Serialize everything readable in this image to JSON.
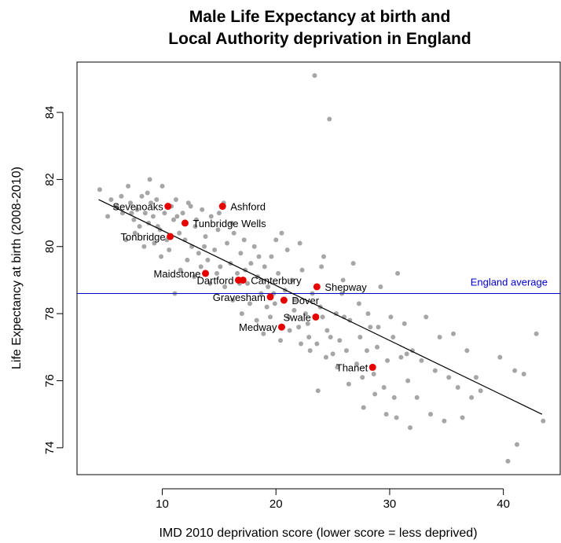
{
  "chart_data": {
    "type": "scatter",
    "title_line1": "Male Life Expectancy at birth and",
    "title_line2": "Local Authority deprivation in England",
    "xlabel": "IMD 2010 deprivation score (lower score = less deprived)",
    "ylabel": "Life Expectancy at birth (2008-2010)",
    "xlim": [
      2.5,
      45
    ],
    "ylim": [
      73.2,
      85.5
    ],
    "xticks": [
      10,
      20,
      30,
      40
    ],
    "yticks": [
      74,
      76,
      78,
      80,
      82,
      84
    ],
    "grid": false,
    "colors": {
      "background_points": "#a6a6a6",
      "highlight_points": "#e60000",
      "reference_line": "#0000cc",
      "trend_line": "#000000"
    },
    "reference_line": {
      "y": 78.6,
      "label": "England average"
    },
    "trend_line": {
      "x": [
        4.4,
        43.4
      ],
      "y": [
        81.4,
        75.0
      ]
    },
    "highlighted": [
      {
        "name": "Sevenoaks",
        "x": 10.5,
        "y": 81.2,
        "label_side": "left"
      },
      {
        "name": "Ashford",
        "x": 15.3,
        "y": 81.2,
        "label_side": "right"
      },
      {
        "name": "Tunbridge Wells",
        "x": 12.0,
        "y": 80.7,
        "label_side": "right"
      },
      {
        "name": "Tonbridge",
        "x": 10.7,
        "y": 80.3,
        "label_side": "left"
      },
      {
        "name": "Maidstone",
        "x": 13.8,
        "y": 79.2,
        "label_side": "left"
      },
      {
        "name": "Dartford",
        "x": 16.7,
        "y": 79.0,
        "label_side": "left"
      },
      {
        "name": "Canterbury",
        "x": 17.1,
        "y": 79.0,
        "label_side": "right"
      },
      {
        "name": "Shepway",
        "x": 23.6,
        "y": 78.8,
        "label_side": "right"
      },
      {
        "name": "Gravesham",
        "x": 19.5,
        "y": 78.5,
        "label_side": "left"
      },
      {
        "name": "Dover",
        "x": 20.7,
        "y": 78.4,
        "label_side": "right"
      },
      {
        "name": "Swale",
        "x": 23.5,
        "y": 77.9,
        "label_side": "left"
      },
      {
        "name": "Medway",
        "x": 20.5,
        "y": 77.6,
        "label_side": "left"
      },
      {
        "name": "Thanet",
        "x": 28.5,
        "y": 76.4,
        "label_side": "left"
      }
    ],
    "points": [
      [
        4.5,
        81.7
      ],
      [
        5.5,
        81.4
      ],
      [
        6.0,
        81.2
      ],
      [
        6.5,
        81.0
      ],
      [
        7.0,
        81.8
      ],
      [
        7.2,
        81.3
      ],
      [
        7.5,
        80.8
      ],
      [
        7.8,
        81.1
      ],
      [
        8.0,
        80.6
      ],
      [
        8.2,
        81.5
      ],
      [
        8.5,
        81.0
      ],
      [
        8.7,
        81.6
      ],
      [
        8.9,
        82.0
      ],
      [
        9.0,
        81.3
      ],
      [
        9.2,
        80.9
      ],
      [
        9.5,
        81.4
      ],
      [
        9.8,
        80.5
      ],
      [
        10.0,
        81.8
      ],
      [
        10.2,
        81.0
      ],
      [
        10.4,
        80.2
      ],
      [
        10.8,
        81.2
      ],
      [
        11.0,
        80.8
      ],
      [
        11.2,
        81.4
      ],
      [
        11.5,
        80.4
      ],
      [
        11.8,
        81.0
      ],
      [
        12.0,
        80.2
      ],
      [
        12.3,
        81.3
      ],
      [
        12.6,
        80.0
      ],
      [
        12.9,
        80.6
      ],
      [
        13.2,
        79.8
      ],
      [
        13.5,
        81.1
      ],
      [
        13.8,
        80.3
      ],
      [
        14.0,
        79.6
      ],
      [
        14.3,
        80.9
      ],
      [
        14.6,
        79.9
      ],
      [
        14.9,
        80.5
      ],
      [
        15.1,
        79.4
      ],
      [
        15.4,
        81.3
      ],
      [
        15.7,
        80.1
      ],
      [
        16.0,
        79.5
      ],
      [
        16.3,
        80.4
      ],
      [
        16.6,
        79.2
      ],
      [
        16.9,
        79.8
      ],
      [
        17.2,
        80.2
      ],
      [
        17.5,
        78.9
      ],
      [
        17.8,
        79.5
      ],
      [
        18.1,
        80.0
      ],
      [
        18.4,
        79.1
      ],
      [
        18.7,
        78.6
      ],
      [
        19.0,
        79.4
      ],
      [
        19.3,
        78.8
      ],
      [
        19.6,
        79.7
      ],
      [
        19.9,
        78.3
      ],
      [
        20.2,
        79.2
      ],
      [
        20.5,
        80.4
      ],
      [
        20.8,
        78.7
      ],
      [
        21.1,
        77.9
      ],
      [
        21.4,
        79.0
      ],
      [
        21.7,
        78.4
      ],
      [
        22.0,
        77.6
      ],
      [
        22.3,
        79.3
      ],
      [
        22.6,
        78.0
      ],
      [
        22.9,
        77.3
      ],
      [
        23.2,
        78.6
      ],
      [
        23.4,
        85.1
      ],
      [
        23.6,
        77.1
      ],
      [
        23.9,
        78.2
      ],
      [
        24.2,
        79.7
      ],
      [
        24.5,
        77.5
      ],
      [
        24.7,
        83.8
      ],
      [
        25.0,
        76.8
      ],
      [
        25.3,
        78.0
      ],
      [
        25.6,
        77.2
      ],
      [
        25.9,
        79.0
      ],
      [
        26.2,
        76.9
      ],
      [
        26.5,
        77.8
      ],
      [
        26.8,
        79.5
      ],
      [
        27.1,
        76.5
      ],
      [
        27.4,
        77.3
      ],
      [
        27.7,
        75.2
      ],
      [
        28.0,
        76.9
      ],
      [
        28.3,
        77.6
      ],
      [
        28.6,
        76.2
      ],
      [
        28.9,
        77.0
      ],
      [
        29.2,
        78.8
      ],
      [
        29.5,
        75.8
      ],
      [
        29.8,
        76.6
      ],
      [
        30.1,
        77.9
      ],
      [
        30.4,
        75.5
      ],
      [
        30.7,
        79.2
      ],
      [
        31.0,
        76.7
      ],
      [
        31.3,
        77.7
      ],
      [
        31.6,
        76.0
      ],
      [
        32.0,
        76.9
      ],
      [
        32.4,
        75.5
      ],
      [
        32.8,
        76.6
      ],
      [
        33.2,
        77.9
      ],
      [
        33.6,
        75.0
      ],
      [
        34.0,
        76.3
      ],
      [
        34.4,
        77.3
      ],
      [
        34.8,
        74.8
      ],
      [
        35.2,
        76.1
      ],
      [
        35.6,
        77.4
      ],
      [
        36.0,
        75.8
      ],
      [
        36.4,
        74.9
      ],
      [
        36.8,
        76.9
      ],
      [
        37.2,
        75.5
      ],
      [
        37.6,
        76.1
      ],
      [
        38.0,
        75.7
      ],
      [
        39.7,
        76.7
      ],
      [
        40.4,
        73.6
      ],
      [
        41.0,
        76.3
      ],
      [
        41.2,
        74.1
      ],
      [
        41.8,
        76.2
      ],
      [
        42.9,
        77.4
      ],
      [
        43.5,
        74.8
      ],
      [
        5.2,
        80.9
      ],
      [
        6.8,
        80.2
      ],
      [
        7.6,
        80.4
      ],
      [
        8.4,
        80.0
      ],
      [
        9.3,
        80.1
      ],
      [
        9.9,
        79.7
      ],
      [
        10.6,
        79.9
      ],
      [
        11.1,
        78.6
      ],
      [
        11.6,
        79.3
      ],
      [
        12.2,
        79.6
      ],
      [
        12.8,
        79.1
      ],
      [
        13.4,
        79.4
      ],
      [
        14.2,
        78.9
      ],
      [
        14.8,
        79.2
      ],
      [
        15.5,
        78.8
      ],
      [
        16.2,
        78.4
      ],
      [
        17.0,
        78.0
      ],
      [
        17.7,
        78.3
      ],
      [
        18.3,
        77.8
      ],
      [
        18.9,
        77.4
      ],
      [
        19.5,
        77.9
      ],
      [
        20.4,
        77.2
      ],
      [
        21.2,
        77.5
      ],
      [
        22.2,
        77.1
      ],
      [
        23.0,
        76.9
      ],
      [
        23.7,
        75.7
      ],
      [
        24.4,
        76.7
      ],
      [
        25.4,
        76.4
      ],
      [
        26.4,
        75.9
      ],
      [
        27.6,
        76.1
      ],
      [
        28.7,
        75.6
      ],
      [
        29.7,
        75.0
      ],
      [
        30.6,
        74.9
      ],
      [
        31.8,
        74.6
      ],
      [
        22.1,
        80.1
      ],
      [
        21.0,
        79.9
      ],
      [
        20.0,
        80.2
      ],
      [
        24.0,
        79.4
      ],
      [
        25.8,
        78.6
      ],
      [
        27.3,
        78.3
      ],
      [
        28.1,
        78.0
      ],
      [
        29.0,
        77.6
      ],
      [
        30.3,
        77.3
      ],
      [
        31.5,
        76.8
      ],
      [
        26.0,
        77.9
      ],
      [
        24.8,
        77.3
      ],
      [
        22.8,
        77.7
      ],
      [
        21.6,
        78.1
      ],
      [
        19.8,
        78.6
      ],
      [
        18.5,
        79.7
      ],
      [
        17.3,
        79.3
      ],
      [
        16.1,
        80.7
      ],
      [
        15.0,
        81.0
      ],
      [
        13.0,
        80.8
      ],
      [
        12.5,
        81.2
      ],
      [
        11.3,
        80.9
      ],
      [
        9.6,
        80.6
      ],
      [
        8.8,
        80.7
      ],
      [
        7.3,
        81.0
      ],
      [
        6.4,
        81.5
      ],
      [
        13.7,
        80.0
      ],
      [
        16.8,
        78.9
      ],
      [
        19.2,
        78.2
      ],
      [
        24.1,
        77.9
      ]
    ]
  }
}
